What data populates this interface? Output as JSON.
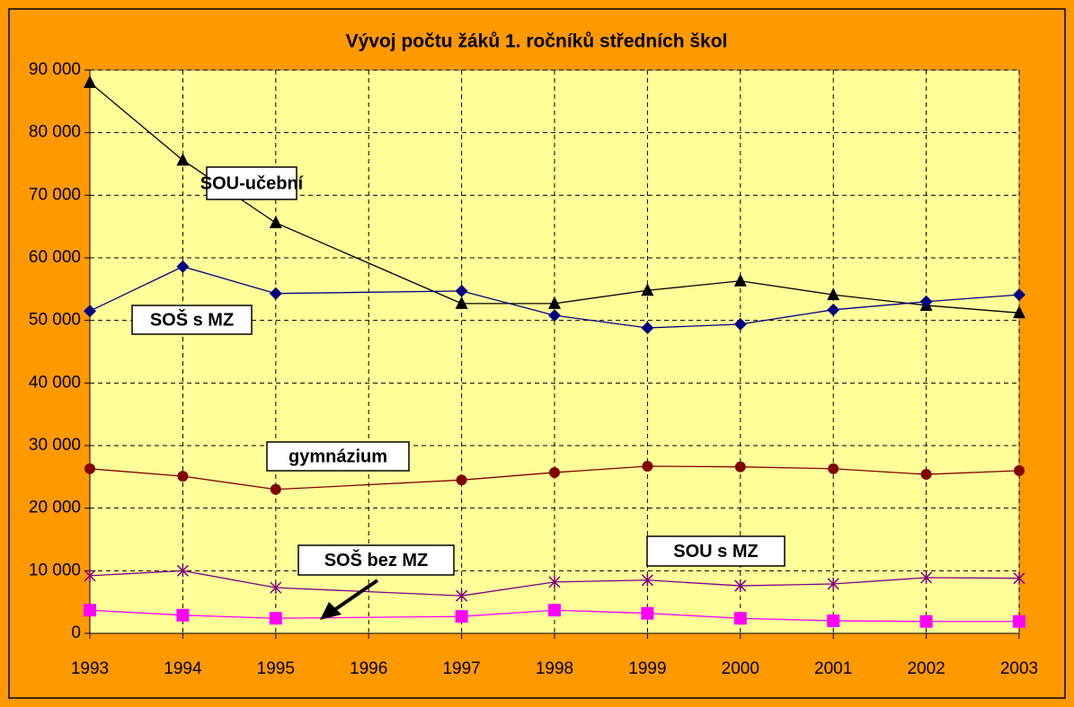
{
  "chart_data": {
    "type": "line",
    "title": "Vývoj počtu žáků 1. ročníků středních škol",
    "x": [
      1993,
      1994,
      1995,
      1997,
      1998,
      1999,
      2000,
      2001,
      2002,
      2003
    ],
    "xlim": [
      1993,
      2003
    ],
    "xticks": [
      1993,
      1994,
      1995,
      1996,
      1997,
      1998,
      1999,
      2000,
      2001,
      2002,
      2003
    ],
    "ylim": [
      0,
      90000
    ],
    "yticks": [
      0,
      {
        "value": 10000,
        "label": "10 000"
      },
      {
        "value": 20000,
        "label": "20 000"
      },
      {
        "value": 30000,
        "label": "30 000"
      },
      {
        "value": 40000,
        "label": "40 000"
      },
      {
        "value": 50000,
        "label": "50 000"
      },
      {
        "value": 60000,
        "label": "60 000"
      },
      {
        "value": 70000,
        "label": "70 000"
      },
      {
        "value": 80000,
        "label": "80 000"
      },
      {
        "value": 90000,
        "label": "90 000"
      }
    ],
    "grid": true,
    "series": [
      {
        "name": "SOU-učební",
        "color": "#000000",
        "marker": "triangle",
        "values": [
          88000,
          75600,
          65600,
          52700,
          52700,
          54800,
          56300,
          54100,
          52400,
          51200
        ]
      },
      {
        "name": "SOŠ s MZ",
        "color": "#000080",
        "marker": "diamond",
        "values": [
          51500,
          58600,
          54300,
          54700,
          50800,
          48800,
          49400,
          51700,
          53000,
          54100
        ]
      },
      {
        "name": "gymnázium",
        "color": "#800000",
        "marker": "circle",
        "values": [
          26300,
          25100,
          23000,
          24500,
          25700,
          26700,
          26600,
          26300,
          25400,
          26000
        ]
      },
      {
        "name": "SOU s MZ",
        "color": "#800080",
        "marker": "star",
        "values": [
          9200,
          10000,
          7300,
          6000,
          8200,
          8500,
          7600,
          7900,
          8900,
          8800
        ]
      },
      {
        "name": "SOŠ bez MZ",
        "color": "#ff00ff",
        "marker": "square",
        "values": [
          3700,
          2900,
          2400,
          2700,
          3700,
          3200,
          2400,
          2000,
          1900,
          1900
        ]
      }
    ]
  }
}
